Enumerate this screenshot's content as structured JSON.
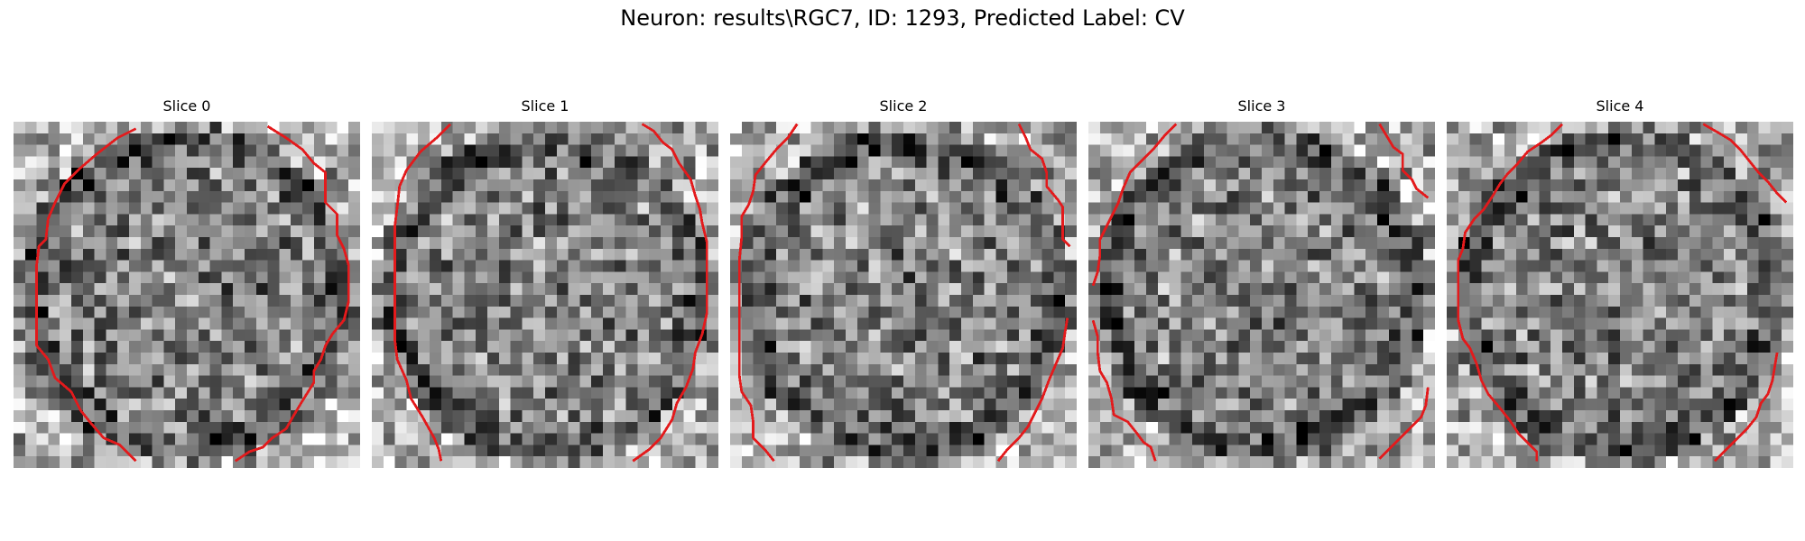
{
  "figure": {
    "title": "Neuron: results\\RGC7, ID: 1293, Predicted Label: CV",
    "contour_color": "#e31a1c"
  },
  "panels": [
    {
      "title": "Slice 0"
    },
    {
      "title": "Slice 1"
    },
    {
      "title": "Slice 2"
    },
    {
      "title": "Slice 3"
    },
    {
      "title": "Slice 4"
    }
  ]
}
